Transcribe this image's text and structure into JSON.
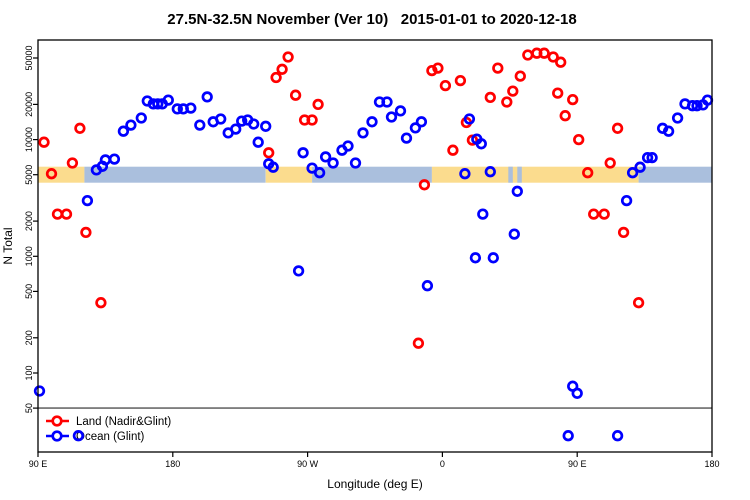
{
  "chart_data": {
    "type": "scatter",
    "title": "27.5N-32.5N November (Ver 10)   2015-01-01 to 2020-12-18",
    "xlabel": "Longitude (deg E)",
    "ylabel": "N Total",
    "x_axis": {
      "range_deg": [
        90,
        540
      ],
      "tick_values_deg": [
        90,
        180,
        270,
        360,
        450,
        540
      ],
      "tick_labels": [
        "90 E",
        "180",
        "90 W",
        "0",
        "90 E",
        "180"
      ]
    },
    "y_axis": {
      "scale": "log",
      "tick_values": [
        50,
        100,
        200,
        500,
        1000,
        2000,
        5000,
        10000,
        20000,
        50000
      ],
      "tick_labels": [
        "50",
        "100",
        "200",
        "500",
        "1000",
        "2000",
        "5000",
        "10000",
        "20000",
        "50000"
      ]
    },
    "reference_line_n": 50,
    "land_ocean_band": {
      "n_center": 5000,
      "segments": [
        {
          "from": 90,
          "to": 121,
          "type": "land"
        },
        {
          "from": 121,
          "to": 242,
          "type": "ocean"
        },
        {
          "from": 242,
          "to": 273,
          "type": "land"
        },
        {
          "from": 273,
          "to": 353,
          "type": "ocean"
        },
        {
          "from": 353,
          "to": 491,
          "type": "land"
        },
        {
          "from": 404,
          "to": 407,
          "type": "ocean"
        },
        {
          "from": 410,
          "to": 413,
          "type": "ocean"
        },
        {
          "from": 491,
          "to": 540,
          "type": "ocean"
        }
      ]
    },
    "colors": {
      "land": "#FF0000",
      "ocean": "#0000FF",
      "band_land": "#FBDC8E",
      "band_ocean": "#AABFDD",
      "reference_line": "#6B6B6B"
    },
    "series": [
      {
        "name": "Land (Nadir&Glint)",
        "color_key": "land",
        "points": [
          [
            94,
            9500
          ],
          [
            118,
            12500
          ],
          [
            113,
            6300
          ],
          [
            99,
            5100
          ],
          [
            103,
            2300
          ],
          [
            109,
            2300
          ],
          [
            122,
            1600
          ],
          [
            132,
            400
          ],
          [
            244,
            7700
          ],
          [
            257,
            51000
          ],
          [
            253,
            40000
          ],
          [
            249,
            34000
          ],
          [
            262,
            24000
          ],
          [
            277,
            20000
          ],
          [
            268,
            14700
          ],
          [
            273,
            14700
          ],
          [
            353,
            39000
          ],
          [
            357,
            41000
          ],
          [
            362,
            29000
          ],
          [
            372,
            32000
          ],
          [
            376,
            14000
          ],
          [
            380,
            9900
          ],
          [
            367,
            8100
          ],
          [
            348,
            4100
          ],
          [
            344,
            180
          ],
          [
            397,
            41000
          ],
          [
            412,
            35000
          ],
          [
            417,
            53000
          ],
          [
            423,
            55000
          ],
          [
            428,
            55000
          ],
          [
            434,
            51000
          ],
          [
            439,
            46000
          ],
          [
            392,
            23000
          ],
          [
            407,
            26000
          ],
          [
            403,
            21000
          ],
          [
            437,
            25000
          ],
          [
            447,
            22000
          ],
          [
            442,
            16000
          ],
          [
            451,
            10000
          ],
          [
            477,
            12500
          ],
          [
            472,
            6300
          ],
          [
            457,
            5200
          ],
          [
            461,
            2300
          ],
          [
            468,
            2300
          ],
          [
            481,
            1600
          ],
          [
            491,
            400
          ]
        ]
      },
      {
        "name": "Ocean (Glint)",
        "color_key": "ocean",
        "points": [
          [
            91,
            70
          ],
          [
            129,
            5500
          ],
          [
            133,
            5900
          ],
          [
            135,
            6700
          ],
          [
            141,
            6800
          ],
          [
            123,
            3000
          ],
          [
            147,
            11800
          ],
          [
            152,
            13300
          ],
          [
            159,
            15300
          ],
          [
            163,
            21400
          ],
          [
            167,
            20200
          ],
          [
            170,
            20200
          ],
          [
            173,
            20200
          ],
          [
            177,
            21800
          ],
          [
            183,
            18300
          ],
          [
            187,
            18300
          ],
          [
            192,
            18600
          ],
          [
            203,
            23200
          ],
          [
            198,
            13300
          ],
          [
            207,
            14200
          ],
          [
            212,
            15000
          ],
          [
            217,
            11400
          ],
          [
            222,
            12300
          ],
          [
            226,
            14400
          ],
          [
            230,
            14700
          ],
          [
            234,
            13600
          ],
          [
            242,
            13000
          ],
          [
            237,
            9500
          ],
          [
            244,
            6200
          ],
          [
            247,
            5800
          ],
          [
            264,
            750
          ],
          [
            267,
            7700
          ],
          [
            273,
            5700
          ],
          [
            278,
            5200
          ],
          [
            282,
            7100
          ],
          [
            287,
            6300
          ],
          [
            293,
            8100
          ],
          [
            297,
            8800
          ],
          [
            302,
            6300
          ],
          [
            307,
            11400
          ],
          [
            313,
            14200
          ],
          [
            318,
            21000
          ],
          [
            323,
            21000
          ],
          [
            326,
            15600
          ],
          [
            332,
            17600
          ],
          [
            336,
            10300
          ],
          [
            342,
            12600
          ],
          [
            346,
            14200
          ],
          [
            378,
            15000
          ],
          [
            383,
            10100
          ],
          [
            386,
            9200
          ],
          [
            375,
            5100
          ],
          [
            392,
            5300
          ],
          [
            410,
            3600
          ],
          [
            387,
            2300
          ],
          [
            408,
            1550
          ],
          [
            382,
            970
          ],
          [
            394,
            970
          ],
          [
            350,
            560
          ],
          [
            483,
            3000
          ],
          [
            447,
            77
          ],
          [
            450,
            67
          ],
          [
            444,
            29
          ],
          [
            477,
            29
          ],
          [
            117,
            29
          ],
          [
            487,
            5200
          ],
          [
            492,
            5800
          ],
          [
            497,
            7000
          ],
          [
            500,
            7000
          ],
          [
            507,
            12500
          ],
          [
            511,
            11800
          ],
          [
            517,
            15300
          ],
          [
            522,
            20200
          ],
          [
            527,
            19500
          ],
          [
            530,
            19500
          ],
          [
            534,
            19800
          ],
          [
            537,
            21800
          ]
        ]
      }
    ],
    "legend": {
      "items": [
        "Land (Nadir&Glint)",
        "Ocean (Glint)"
      ]
    }
  }
}
